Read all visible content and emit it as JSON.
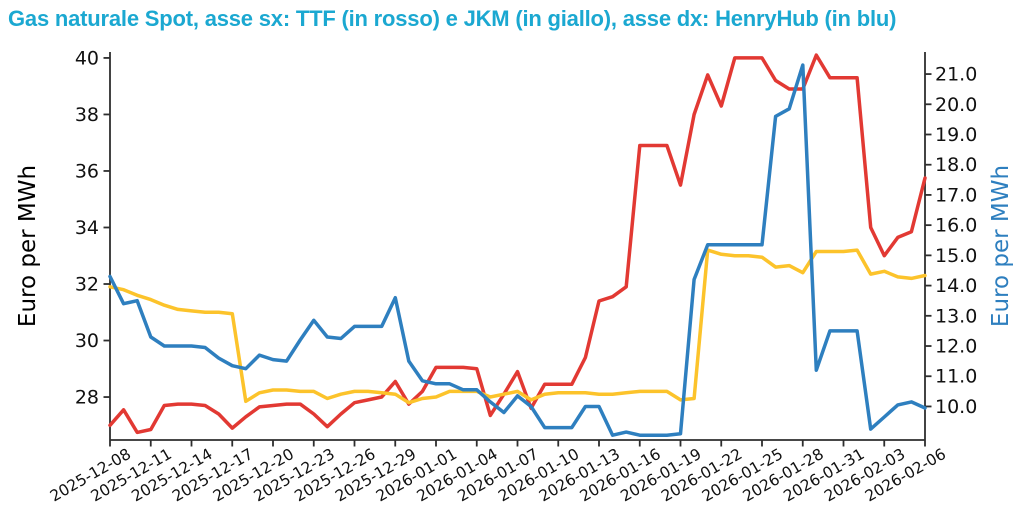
{
  "chart_data": {
    "type": "line",
    "title": "Gas naturale Spot, asse sx: TTF (in rosso) e JKM (in giallo), asse dx: HenryHub (in blu)",
    "title_color": "#1ba8d1",
    "ylabel_left": "Euro per MWh",
    "ylabel_right": "Euro per MWh",
    "ylabel_left_color": "#000000",
    "ylabel_right_color": "#2e7fbf",
    "axis_color": "#2e2e2e",
    "grid": false,
    "legend": false,
    "x_tick_step": 3,
    "x": [
      "2025-12-08",
      "2025-12-09",
      "2025-12-10",
      "2025-12-11",
      "2025-12-12",
      "2025-12-13",
      "2025-12-14",
      "2025-12-15",
      "2025-12-16",
      "2025-12-17",
      "2025-12-18",
      "2025-12-19",
      "2025-12-20",
      "2025-12-21",
      "2025-12-22",
      "2025-12-23",
      "2025-12-24",
      "2025-12-25",
      "2025-12-26",
      "2025-12-27",
      "2025-12-28",
      "2025-12-29",
      "2025-12-30",
      "2025-12-31",
      "2026-01-01",
      "2026-01-02",
      "2026-01-03",
      "2026-01-04",
      "2026-01-05",
      "2026-01-06",
      "2026-01-07",
      "2026-01-08",
      "2026-01-09",
      "2026-01-10",
      "2026-01-11",
      "2026-01-12",
      "2026-01-13",
      "2026-01-14",
      "2026-01-15",
      "2026-01-16",
      "2026-01-17",
      "2026-01-18",
      "2026-01-19",
      "2026-01-20",
      "2026-01-21",
      "2026-01-22",
      "2026-01-23",
      "2026-01-24",
      "2026-01-25",
      "2026-01-26",
      "2026-01-27",
      "2026-01-28",
      "2026-01-29",
      "2026-01-30",
      "2026-01-31",
      "2026-02-01",
      "2026-02-02",
      "2026-02-03",
      "2026-02-04",
      "2026-02-05",
      "2026-02-06"
    ],
    "series": [
      {
        "name": "TTF",
        "axis": "left",
        "color": "#e23933",
        "values": [
          27.0,
          27.55,
          26.75,
          26.85,
          27.7,
          27.75,
          27.75,
          27.7,
          27.4,
          26.9,
          27.3,
          27.65,
          27.7,
          27.75,
          27.75,
          27.4,
          26.95,
          27.4,
          27.8,
          27.9,
          28.0,
          28.55,
          27.75,
          28.2,
          29.05,
          29.05,
          29.05,
          29.0,
          27.35,
          28.1,
          28.9,
          27.6,
          28.45,
          28.45,
          28.45,
          29.4,
          31.4,
          31.55,
          31.9,
          36.9,
          36.9,
          36.9,
          35.5,
          38.0,
          39.4,
          38.3,
          40.0,
          40.0,
          40.0,
          39.2,
          38.9,
          38.9,
          40.1,
          39.3,
          39.3,
          39.3,
          34.0,
          33.0,
          33.65,
          33.85,
          35.75
        ]
      },
      {
        "name": "JKM",
        "axis": "left",
        "color": "#fcc32b",
        "values": [
          31.9,
          31.8,
          31.6,
          31.45,
          31.25,
          31.1,
          31.05,
          31.0,
          31.0,
          30.95,
          27.85,
          28.15,
          28.25,
          28.25,
          28.2,
          28.2,
          27.95,
          28.1,
          28.2,
          28.2,
          28.15,
          28.1,
          27.8,
          27.95,
          28.0,
          28.2,
          28.2,
          28.2,
          28.0,
          28.1,
          28.2,
          27.9,
          28.1,
          28.15,
          28.15,
          28.15,
          28.1,
          28.1,
          28.15,
          28.2,
          28.2,
          28.2,
          27.9,
          27.95,
          33.2,
          33.05,
          33.0,
          33.0,
          32.95,
          32.6,
          32.65,
          32.4,
          33.15,
          33.15,
          33.15,
          33.2,
          32.35,
          32.45,
          32.25,
          32.2,
          32.3
        ]
      },
      {
        "name": "HenryHub",
        "axis": "right",
        "color": "#2e7fbf",
        "values": [
          14.3,
          13.4,
          13.5,
          12.3,
          12.0,
          12.0,
          12.0,
          11.95,
          11.6,
          11.35,
          11.25,
          11.7,
          11.55,
          11.5,
          12.2,
          12.85,
          12.3,
          12.25,
          12.65,
          12.65,
          12.65,
          13.6,
          11.5,
          10.85,
          10.75,
          10.75,
          10.55,
          10.55,
          10.15,
          9.8,
          10.35,
          10.0,
          9.3,
          9.3,
          9.3,
          10.0,
          10.0,
          9.05,
          9.15,
          9.05,
          9.05,
          9.05,
          9.1,
          14.2,
          15.35,
          15.35,
          15.35,
          15.35,
          15.35,
          19.6,
          19.85,
          21.3,
          11.2,
          12.5,
          12.5,
          12.5,
          9.25,
          9.65,
          10.05,
          10.15,
          9.95
        ]
      }
    ],
    "left_axis": {
      "ticks": [
        28,
        30,
        32,
        34,
        36,
        38,
        40
      ],
      "tick_labels": [
        "28",
        "30",
        "32",
        "34",
        "36",
        "38",
        "40"
      ],
      "ylim": [
        26.48,
        40.21
      ]
    },
    "right_axis": {
      "ticks": [
        10,
        11,
        12,
        13,
        14,
        15,
        16,
        17,
        18,
        19,
        20,
        21
      ],
      "tick_labels": [
        "10.0",
        "11.0",
        "12.0",
        "13.0",
        "14.0",
        "15.0",
        "16.0",
        "17.0",
        "18.0",
        "19.0",
        "20.0",
        "21.0"
      ],
      "ylim": [
        8.89,
        21.73
      ]
    }
  }
}
